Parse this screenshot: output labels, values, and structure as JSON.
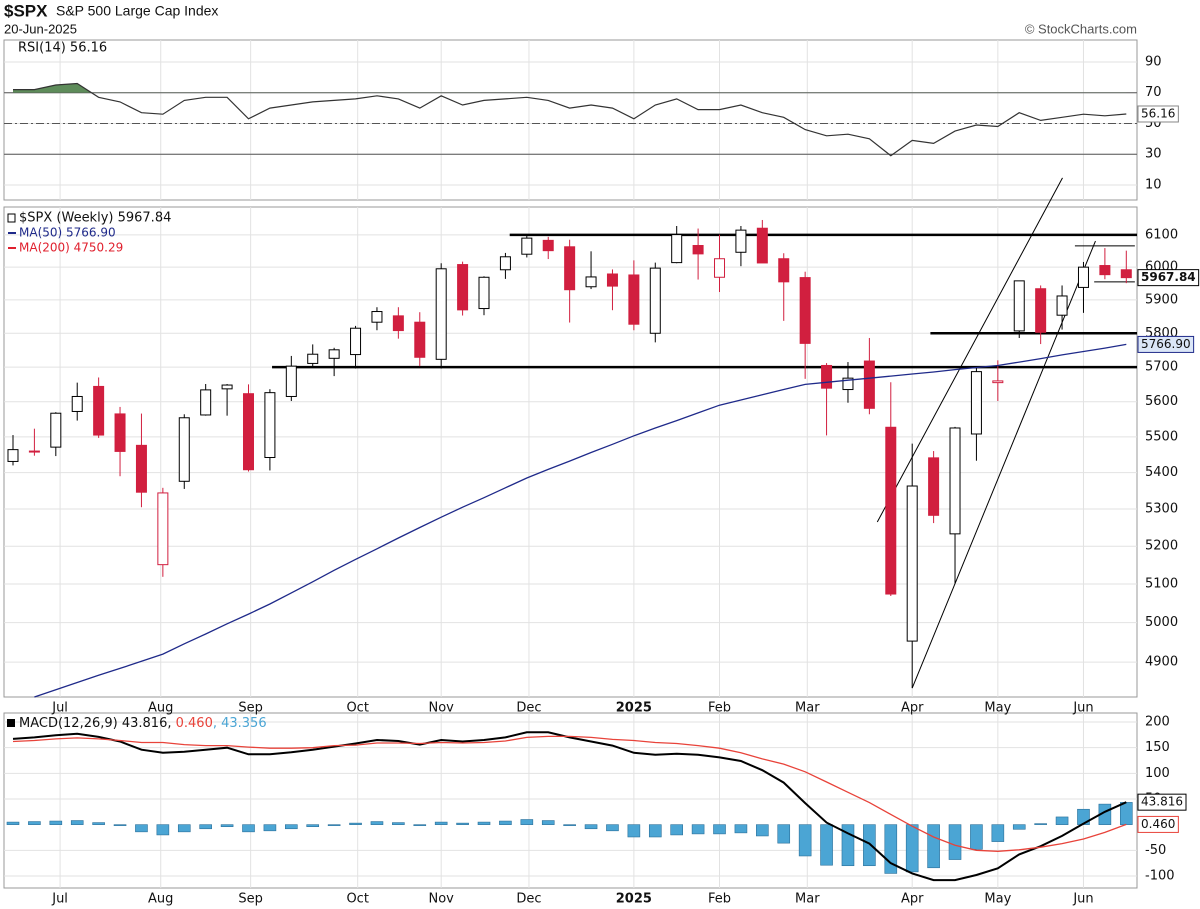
{
  "header": {
    "symbol": "$SPX",
    "name": "S&P 500 Large Cap Index",
    "date": "20-Jun-2025",
    "credit": "© StockCharts.com"
  },
  "x_axis": {
    "xlim": [
      -0.42,
      52.5
    ],
    "xticks": [
      {
        "value": 2.2,
        "label": "Jul"
      },
      {
        "value": 6.9,
        "label": "Aug"
      },
      {
        "value": 11.1,
        "label": "Sep"
      },
      {
        "value": 16.1,
        "label": "Oct"
      },
      {
        "value": 20.0,
        "label": "Nov"
      },
      {
        "value": 24.1,
        "label": "Dec"
      },
      {
        "value": 29.0,
        "label": "2025"
      },
      {
        "value": 33.0,
        "label": "Feb"
      },
      {
        "value": 37.1,
        "label": "Mar"
      },
      {
        "value": 42.0,
        "label": "Apr"
      },
      {
        "value": 46.0,
        "label": "May"
      },
      {
        "value": 50.0,
        "label": "Jun"
      }
    ]
  },
  "chart_data": [
    {
      "type": "rsi",
      "legend": "RSI(14) 56.16",
      "ylim": [
        0.2,
        104.3
      ],
      "yticks": [
        10,
        30,
        50,
        70,
        90
      ],
      "overbought": 70,
      "midline": 50,
      "oversold": 30,
      "fill_color": "#5e8c5a",
      "series": [
        {
          "name": "RSI(14)",
          "color": "#333333",
          "tag": "56.16",
          "values": [
            72,
            72,
            75,
            76,
            67,
            64,
            57,
            56,
            65,
            67,
            67,
            53,
            60,
            62,
            64,
            65,
            66,
            68,
            66,
            60,
            68,
            62,
            65,
            66,
            67,
            65,
            60,
            62,
            60,
            53,
            62,
            66,
            59,
            59,
            62,
            57,
            54,
            46,
            42,
            43,
            40,
            29,
            39,
            37,
            45,
            49,
            48,
            57,
            52,
            54,
            56,
            55,
            56.16
          ]
        }
      ]
    },
    {
      "type": "candlestick",
      "legend": "$SPX (Weekly) 5967.84",
      "tag": "5967.84",
      "log": true,
      "ylim": [
        4813,
        6188
      ],
      "yticks": [
        4900,
        5000,
        5100,
        5200,
        5300,
        5400,
        5500,
        5600,
        5700,
        5800,
        5900,
        6000,
        6100
      ],
      "up_color": "#000000",
      "down_color": "#d11f3f",
      "open": [
        5431,
        5460,
        5471,
        5572,
        5644,
        5565,
        5476,
        5151,
        5376,
        5562,
        5637,
        5623,
        5442,
        5615,
        5711,
        5726,
        5737,
        5833,
        5852,
        5833,
        5723,
        6008,
        5874,
        5992,
        6040,
        6083,
        6063,
        5940,
        5979,
        5976,
        5800,
        6014,
        6067,
        5969,
        6046,
        6121,
        6026,
        5968,
        5705,
        5635,
        5718,
        5527,
        4953,
        5441,
        5233,
        5508,
        5655,
        5807,
        5934,
        5854,
        5938,
        6005,
        5992
      ],
      "high": [
        5505,
        5523,
        5570,
        5655,
        5670,
        5585,
        5566,
        5358,
        5564,
        5651,
        5651,
        5650,
        5636,
        5733,
        5767,
        5757,
        5822,
        5878,
        5878,
        5863,
        6012,
        6017,
        5972,
        6044,
        6099,
        6094,
        6085,
        6049,
        5993,
        6021,
        6014,
        6128,
        6120,
        6101,
        6128,
        6147,
        6043,
        5986,
        5712,
        5715,
        5786,
        5656,
        5481,
        5460,
        5528,
        5700,
        5720,
        5959,
        5944,
        5944,
        6016,
        6059,
        6051
      ],
      "low": [
        5420,
        5447,
        5446,
        5546,
        5497,
        5390,
        5305,
        5119,
        5355,
        5560,
        5560,
        5403,
        5406,
        5602,
        5703,
        5674,
        5696,
        5809,
        5784,
        5703,
        5696,
        5853,
        5854,
        5964,
        6030,
        6025,
        5832,
        5933,
        5869,
        5809,
        5773,
        6012,
        5962,
        5924,
        6003,
        6013,
        5837,
        5666,
        5504,
        5597,
        5564,
        5069,
        4835,
        5262,
        5101,
        5433,
        5602,
        5786,
        5768,
        5811,
        5861,
        5963,
        5951
      ],
      "close": [
        5464,
        5460,
        5567,
        5615,
        5505,
        5459,
        5346,
        5344,
        5554,
        5634,
        5648,
        5408,
        5626,
        5703,
        5738,
        5751,
        5815,
        5865,
        5808,
        5729,
        5995,
        5870,
        5969,
        6032,
        6090,
        6051,
        5931,
        5970,
        5942,
        5827,
        5997,
        6101,
        6041,
        6026,
        6115,
        6013,
        5955,
        5770,
        5639,
        5668,
        5581,
        5074,
        5363,
        5283,
        5525,
        5687,
        5660,
        5958,
        5803,
        5912,
        6000,
        5977,
        5967.84
      ],
      "series": [
        {
          "name": "MA(50) 5766.90",
          "color": "#1f2a8a",
          "tag": "5766.90",
          "values": [
            null,
            4813,
            4831,
            4849,
            4867,
            4884,
            4902,
            4920,
            4946,
            4971,
            4997,
            5022,
            5048,
            5077,
            5106,
            5136,
            5165,
            5193,
            5222,
            5250,
            5278,
            5305,
            5331,
            5358,
            5385,
            5409,
            5432,
            5456,
            5479,
            5503,
            5525,
            5546,
            5568,
            5590,
            5605,
            5620,
            5635,
            5650,
            5656,
            5662,
            5668,
            5674,
            5680,
            5686,
            5693,
            5699,
            5705,
            5715,
            5725,
            5736,
            5746,
            5756,
            5766.9
          ]
        },
        {
          "name": "MA(200) 4750.29",
          "color": "#e0202e"
        }
      ],
      "levels": [
        {
          "y": 6100,
          "from": 23.2,
          "to": 52.5,
          "heavy": true
        },
        {
          "y": 5700,
          "from": 12.1,
          "to": 52.5,
          "heavy": true
        },
        {
          "y": 5800,
          "from": 42.85,
          "to": 52.5,
          "heavy": true
        },
        {
          "y": 6066,
          "from": 49.6,
          "to": 52.4,
          "heavy": false
        },
        {
          "y": 5955,
          "from": 50.5,
          "to": 52.4,
          "heavy": false
        }
      ],
      "trendlines": [
        {
          "x1": 40.37,
          "y1": 5265,
          "x2": 49.02,
          "y2": 6281
        },
        {
          "x1": 42.0,
          "y1": 4835,
          "x2": 50.56,
          "y2": 6081
        }
      ]
    },
    {
      "type": "macd",
      "ylim": [
        -123.4,
        217.5
      ],
      "yticks": [
        -100,
        -50,
        50,
        100,
        150,
        200
      ],
      "series": [
        {
          "name": "MACD(12,26,9) 43.816, ",
          "color": "#000000",
          "tag": "43.816",
          "values": [
            167,
            170,
            174,
            177,
            171,
            162,
            146,
            140,
            142,
            146,
            150,
            137,
            137,
            141,
            146,
            152,
            158,
            165,
            163,
            156,
            165,
            162,
            165,
            170,
            180,
            180,
            170,
            162,
            154,
            140,
            136,
            138,
            136,
            131,
            124,
            106,
            82,
            42,
            4,
            -17,
            -37,
            -75,
            -95,
            -108,
            -108,
            -98,
            -85,
            -58,
            -42,
            -22,
            2,
            25,
            43.816
          ]
        },
        {
          "name": "0.460",
          "color": "#e8433a",
          "tag": "0.460",
          "values": [
            162,
            164,
            167,
            169,
            167,
            164,
            160,
            160,
            156,
            154,
            154,
            151,
            149,
            149,
            150,
            154,
            155,
            159,
            159,
            158,
            160,
            159,
            160,
            163,
            170,
            172,
            172,
            170,
            166,
            164,
            160,
            158,
            154,
            149,
            140,
            128,
            118,
            103,
            83,
            63,
            43,
            20,
            -3,
            -24,
            -40,
            -50,
            -52,
            -49,
            -44,
            -37,
            -28,
            -15,
            0.46
          ]
        },
        {
          "name": ", 43.356",
          "color": "#4ba5d4",
          "histogram": true,
          "values": [
            5,
            6,
            7,
            8,
            4,
            -2,
            -14,
            -20,
            -14,
            -8,
            -4,
            -14,
            -12,
            -8,
            -4,
            -2,
            3,
            6,
            4,
            -2,
            5,
            3,
            5,
            7,
            10,
            8,
            -2,
            -8,
            -12,
            -24,
            -24,
            -20,
            -18,
            -18,
            -16,
            -22,
            -36,
            -61,
            -79,
            -80,
            -80,
            -95,
            -92,
            -84,
            -68,
            -48,
            -33,
            -9,
            2,
            15,
            30,
            40,
            43.356
          ]
        }
      ]
    }
  ]
}
